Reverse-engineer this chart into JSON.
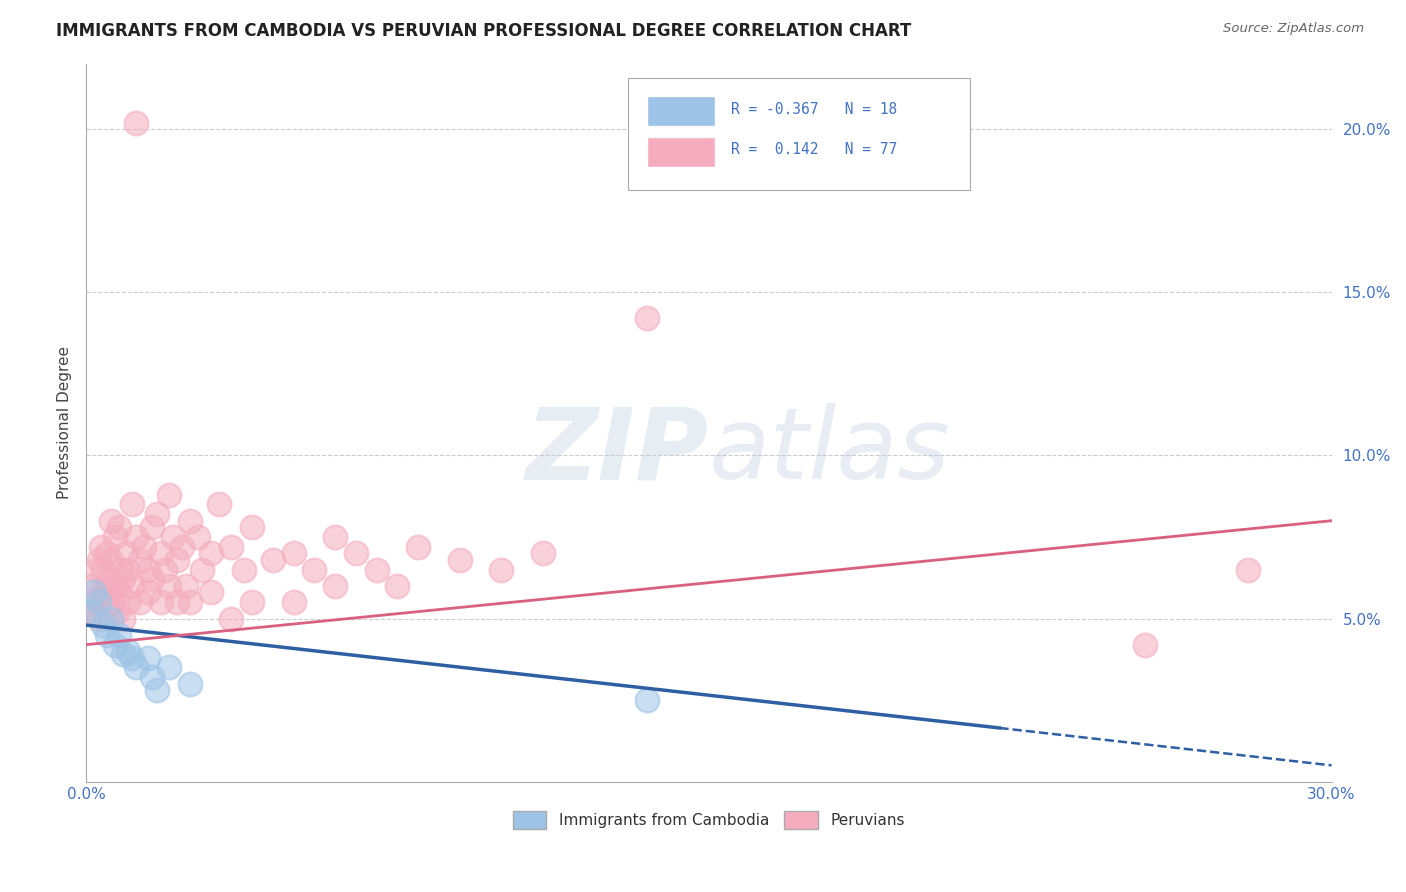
{
  "title": "IMMIGRANTS FROM CAMBODIA VS PERUVIAN PROFESSIONAL DEGREE CORRELATION CHART",
  "source_text": "Source: ZipAtlas.com",
  "ylabel": "Professional Degree",
  "xlim": [
    0.0,
    30.0
  ],
  "ylim": [
    0.0,
    22.0
  ],
  "yticks": [
    5.0,
    10.0,
    15.0,
    20.0
  ],
  "ytick_labels": [
    "5.0%",
    "10.0%",
    "15.0%",
    "20.0%"
  ],
  "xtick_labels": [
    "0.0%",
    "30.0%"
  ],
  "legend_label1": "Immigrants from Cambodia",
  "legend_label2": "Peruvians",
  "watermark": "ZIPatlas",
  "watermark_color": "#c8d8ea",
  "axis_color": "#4472c4",
  "grid_color": "#cccccc",
  "blue_color": "#9dc3e6",
  "pink_color": "#f4acbe",
  "blue_line_color": "#2e5fa3",
  "pink_line_color": "#d96080",
  "blue_scatter": [
    [
      0.1,
      5.2
    ],
    [
      0.2,
      5.8
    ],
    [
      0.3,
      5.5
    ],
    [
      0.4,
      4.8
    ],
    [
      0.5,
      4.5
    ],
    [
      0.6,
      5.0
    ],
    [
      0.7,
      4.2
    ],
    [
      0.8,
      4.5
    ],
    [
      0.9,
      3.9
    ],
    [
      1.0,
      4.0
    ],
    [
      1.1,
      3.8
    ],
    [
      1.2,
      3.5
    ],
    [
      1.5,
      3.8
    ],
    [
      1.6,
      3.2
    ],
    [
      1.7,
      2.8
    ],
    [
      2.0,
      3.5
    ],
    [
      2.5,
      3.0
    ],
    [
      13.5,
      2.5
    ]
  ],
  "pink_scatter": [
    [
      0.1,
      6.0
    ],
    [
      0.15,
      5.5
    ],
    [
      0.2,
      5.2
    ],
    [
      0.25,
      6.5
    ],
    [
      0.3,
      6.8
    ],
    [
      0.3,
      5.0
    ],
    [
      0.35,
      7.2
    ],
    [
      0.4,
      5.8
    ],
    [
      0.4,
      6.5
    ],
    [
      0.45,
      5.5
    ],
    [
      0.5,
      7.0
    ],
    [
      0.5,
      5.8
    ],
    [
      0.55,
      6.2
    ],
    [
      0.6,
      8.0
    ],
    [
      0.6,
      6.8
    ],
    [
      0.65,
      5.5
    ],
    [
      0.7,
      7.5
    ],
    [
      0.7,
      6.0
    ],
    [
      0.75,
      5.2
    ],
    [
      0.8,
      7.8
    ],
    [
      0.8,
      5.8
    ],
    [
      0.85,
      6.5
    ],
    [
      0.9,
      6.2
    ],
    [
      0.9,
      5.0
    ],
    [
      0.95,
      7.0
    ],
    [
      1.0,
      6.5
    ],
    [
      1.0,
      5.5
    ],
    [
      1.1,
      8.5
    ],
    [
      1.1,
      6.0
    ],
    [
      1.2,
      20.2
    ],
    [
      1.2,
      7.5
    ],
    [
      1.3,
      6.8
    ],
    [
      1.3,
      5.5
    ],
    [
      1.4,
      7.2
    ],
    [
      1.5,
      6.5
    ],
    [
      1.5,
      5.8
    ],
    [
      1.6,
      7.8
    ],
    [
      1.6,
      6.2
    ],
    [
      1.7,
      8.2
    ],
    [
      1.8,
      5.5
    ],
    [
      1.8,
      7.0
    ],
    [
      1.9,
      6.5
    ],
    [
      2.0,
      8.8
    ],
    [
      2.0,
      6.0
    ],
    [
      2.1,
      7.5
    ],
    [
      2.2,
      6.8
    ],
    [
      2.2,
      5.5
    ],
    [
      2.3,
      7.2
    ],
    [
      2.4,
      6.0
    ],
    [
      2.5,
      8.0
    ],
    [
      2.5,
      5.5
    ],
    [
      2.7,
      7.5
    ],
    [
      2.8,
      6.5
    ],
    [
      3.0,
      7.0
    ],
    [
      3.0,
      5.8
    ],
    [
      3.2,
      8.5
    ],
    [
      3.5,
      7.2
    ],
    [
      3.5,
      5.0
    ],
    [
      3.8,
      6.5
    ],
    [
      4.0,
      7.8
    ],
    [
      4.0,
      5.5
    ],
    [
      4.5,
      6.8
    ],
    [
      5.0,
      7.0
    ],
    [
      5.0,
      5.5
    ],
    [
      5.5,
      6.5
    ],
    [
      6.0,
      7.5
    ],
    [
      6.0,
      6.0
    ],
    [
      6.5,
      7.0
    ],
    [
      7.0,
      6.5
    ],
    [
      7.5,
      6.0
    ],
    [
      8.0,
      7.2
    ],
    [
      9.0,
      6.8
    ],
    [
      10.0,
      6.5
    ],
    [
      11.0,
      7.0
    ],
    [
      13.5,
      14.2
    ],
    [
      25.5,
      4.2
    ],
    [
      28.0,
      6.5
    ]
  ],
  "blue_trend_x": [
    0.0,
    30.0
  ],
  "blue_trend_y": [
    4.8,
    0.5
  ],
  "blue_solid_end_x": 22.0,
  "pink_trend_x": [
    0.0,
    30.0
  ],
  "pink_trend_y": [
    4.2,
    8.0
  ]
}
